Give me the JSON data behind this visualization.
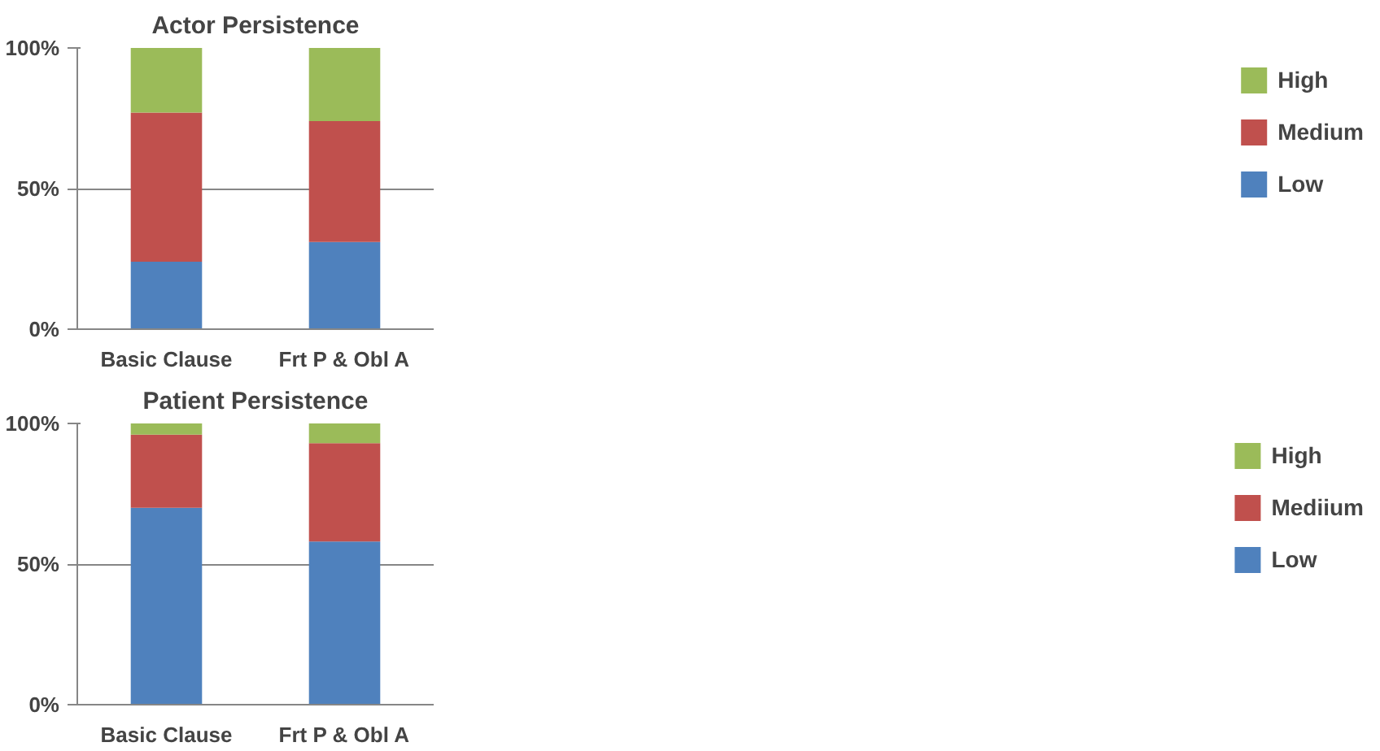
{
  "chart_data": [
    {
      "type": "bar",
      "title": "Actor Persistence",
      "stacked": true,
      "categories": [
        "Basic Clause",
        "Frt P & Obl A"
      ],
      "series": [
        {
          "name": "Low",
          "color": "#4f81bd",
          "values": [
            24,
            31
          ]
        },
        {
          "name": "Medium",
          "color": "#c0504d",
          "values": [
            53,
            43
          ]
        },
        {
          "name": "High",
          "color": "#9bbb59",
          "values": [
            23,
            26
          ]
        }
      ],
      "ylim": [
        0,
        100
      ],
      "yticks": [
        {
          "value": 0,
          "label": "0%"
        },
        {
          "value": 50,
          "label": "50%"
        },
        {
          "value": 100,
          "label": "100%"
        }
      ],
      "grid": "y",
      "legend": "right"
    },
    {
      "type": "bar",
      "title": "Patient Persistence",
      "stacked": true,
      "categories": [
        "Basic Clause",
        "Frt P & Obl A"
      ],
      "series": [
        {
          "name": "Low",
          "color": "#4f81bd",
          "values": [
            70,
            58
          ]
        },
        {
          "name": "Mediium",
          "color": "#c0504d",
          "values": [
            26,
            35
          ]
        },
        {
          "name": "High",
          "color": "#9bbb59",
          "values": [
            4,
            7
          ]
        }
      ],
      "ylim": [
        0,
        100
      ],
      "yticks": [
        {
          "value": 0,
          "label": "0%"
        },
        {
          "value": 50,
          "label": "50%"
        },
        {
          "value": 100,
          "label": "100%"
        }
      ],
      "grid": "y",
      "legend": "right"
    }
  ]
}
